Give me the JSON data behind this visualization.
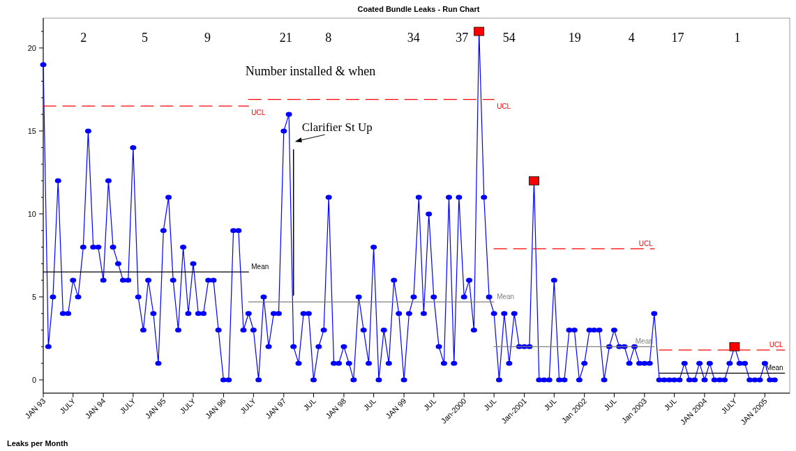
{
  "chart_data": {
    "type": "line",
    "title": "Coated Bundle Leaks - Run Chart",
    "ylabel": "Leaks per Month",
    "xlim": [
      "1993-01",
      "2005-06"
    ],
    "ylim": [
      -0.8,
      21.8
    ],
    "xticks": [
      {
        "value": "1993-01",
        "label": "JAN 93"
      },
      {
        "value": "1993-07",
        "label": "JULY"
      },
      {
        "value": "1994-01",
        "label": "JAN 94"
      },
      {
        "value": "1994-07",
        "label": "JULY"
      },
      {
        "value": "1995-01",
        "label": "JAN 95"
      },
      {
        "value": "1995-07",
        "label": "JULY"
      },
      {
        "value": "1996-01",
        "label": "JAN 96"
      },
      {
        "value": "1996-07",
        "label": "JULY"
      },
      {
        "value": "1997-01",
        "label": "JAN 97"
      },
      {
        "value": "1997-07",
        "label": "JUL"
      },
      {
        "value": "1998-01",
        "label": "JAN 98"
      },
      {
        "value": "1998-07",
        "label": "JUL"
      },
      {
        "value": "1999-01",
        "label": "JAN 99"
      },
      {
        "value": "1999-07",
        "label": "JUL"
      },
      {
        "value": "2000-01",
        "label": "Jan-2000"
      },
      {
        "value": "2000-07",
        "label": "JUL"
      },
      {
        "value": "2001-01",
        "label": "Jan-2001"
      },
      {
        "value": "2001-07",
        "label": "JUL"
      },
      {
        "value": "2002-01",
        "label": "Jan 2002"
      },
      {
        "value": "2002-07",
        "label": "JUL"
      },
      {
        "value": "2003-01",
        "label": "Jan 2003"
      },
      {
        "value": "2003-07",
        "label": "JUL"
      },
      {
        "value": "2004-01",
        "label": "JAN 2004"
      },
      {
        "value": "2004-07",
        "label": "JULY"
      },
      {
        "value": "2005-01",
        "label": "JAN 2005"
      }
    ],
    "yticks": [
      0,
      {
        "value": 1,
        "label": null
      },
      {
        "value": 2,
        "label": null
      },
      {
        "value": 3,
        "label": null
      },
      {
        "value": 4,
        "label": null
      },
      5,
      {
        "value": 6,
        "label": null
      },
      {
        "value": 7,
        "label": null
      },
      {
        "value": 8,
        "label": null
      },
      {
        "value": 9,
        "label": null
      },
      10,
      {
        "value": 11,
        "label": null
      },
      {
        "value": 12,
        "label": null
      },
      {
        "value": 13,
        "label": null
      },
      {
        "value": 14,
        "label": null
      },
      15,
      {
        "value": 16,
        "label": null
      },
      {
        "value": 17,
        "label": null
      },
      {
        "value": 18,
        "label": null
      },
      {
        "value": 19,
        "label": null
      },
      20,
      {
        "value": 21,
        "label": null
      }
    ],
    "grid": false,
    "legend": false,
    "x": [
      "1993-01",
      "1993-02",
      "1993-03",
      "1993-04",
      "1993-05",
      "1993-06",
      "1993-07",
      "1993-08",
      "1993-09",
      "1993-10",
      "1993-11",
      "1993-12",
      "1994-01",
      "1994-02",
      "1994-03",
      "1994-04",
      "1994-05",
      "1994-06",
      "1994-07",
      "1994-08",
      "1994-09",
      "1994-10",
      "1994-11",
      "1994-12",
      "1995-01",
      "1995-02",
      "1995-03",
      "1995-04",
      "1995-05",
      "1995-06",
      "1995-07",
      "1995-08",
      "1995-09",
      "1995-10",
      "1995-11",
      "1995-12",
      "1996-01",
      "1996-02",
      "1996-03",
      "1996-04",
      "1996-05",
      "1996-06",
      "1996-07",
      "1996-08",
      "1996-09",
      "1996-10",
      "1996-11",
      "1996-12",
      "1997-01",
      "1997-02",
      "1997-03",
      "1997-04",
      "1997-05",
      "1997-06",
      "1997-07",
      "1997-08",
      "1997-09",
      "1997-10",
      "1997-11",
      "1997-12",
      "1998-01",
      "1998-02",
      "1998-03",
      "1998-04",
      "1998-05",
      "1998-06",
      "1998-07",
      "1998-08",
      "1998-09",
      "1998-10",
      "1998-11",
      "1998-12",
      "1999-01",
      "1999-02",
      "1999-03",
      "1999-04",
      "1999-05",
      "1999-06",
      "1999-07",
      "1999-08",
      "1999-09",
      "1999-10",
      "1999-11",
      "1999-12",
      "2000-01",
      "2000-02",
      "2000-03",
      "2000-04",
      "2000-05",
      "2000-06",
      "2000-07",
      "2000-08",
      "2000-09",
      "2000-10",
      "2000-11",
      "2000-12",
      "2001-01",
      "2001-02",
      "2001-03",
      "2001-04",
      "2001-05",
      "2001-06",
      "2001-07",
      "2001-08",
      "2001-09",
      "2001-10",
      "2001-11",
      "2001-12",
      "2002-01",
      "2002-02",
      "2002-03",
      "2002-04",
      "2002-05",
      "2002-06",
      "2002-07",
      "2002-08",
      "2002-09",
      "2002-10",
      "2002-11",
      "2002-12",
      "2003-01",
      "2003-02",
      "2003-03",
      "2003-04",
      "2003-05",
      "2003-06",
      "2003-07",
      "2003-08",
      "2003-09",
      "2003-10",
      "2003-11",
      "2003-12",
      "2004-01",
      "2004-02",
      "2004-03",
      "2004-04",
      "2004-05",
      "2004-06",
      "2004-07",
      "2004-08",
      "2004-09",
      "2004-10",
      "2004-11",
      "2004-12",
      "2005-01",
      "2005-02",
      "2005-03"
    ],
    "series": [
      {
        "color": "#0000ff",
        "marker": "circle",
        "line_style": "solid",
        "values": [
          19,
          2,
          5,
          12,
          4,
          4,
          6,
          5,
          8,
          15,
          8,
          8,
          6,
          12,
          8,
          7,
          6,
          6,
          14,
          5,
          3,
          6,
          4,
          1,
          9,
          11,
          6,
          3,
          8,
          4,
          7,
          4,
          4,
          6,
          6,
          3,
          0,
          0,
          9,
          9,
          3,
          4,
          3,
          0,
          5,
          2,
          4,
          4,
          15,
          16,
          2,
          1,
          4,
          4,
          0,
          2,
          3,
          11,
          1,
          1,
          2,
          1,
          0,
          5,
          3,
          1,
          8,
          0,
          3,
          1,
          6,
          4,
          0,
          4,
          5,
          11,
          4,
          10,
          5,
          2,
          1,
          11,
          1,
          11,
          5,
          6,
          3,
          21,
          11,
          5,
          4,
          0,
          4,
          1,
          4,
          2,
          2,
          2,
          12,
          0,
          0,
          0,
          6,
          0,
          0,
          3,
          3,
          0,
          1,
          3,
          3,
          3,
          0,
          2,
          3,
          2,
          2,
          1,
          2,
          1,
          1,
          1,
          4,
          0,
          0,
          0,
          0,
          0,
          1,
          0,
          0,
          1,
          0,
          1,
          0,
          0,
          0,
          1,
          2,
          1,
          1,
          0,
          0,
          0,
          1,
          0,
          0
        ]
      },
      {
        "type": "scatter",
        "color": "#ff0000",
        "marker": "square",
        "x": [
          "2000-04",
          "2001-03",
          "2004-07"
        ],
        "values": [
          21,
          12,
          2
        ]
      },
      {
        "type": "line",
        "name": "UCL",
        "color": "#ff0000",
        "marker": "none",
        "line_style": "dashed",
        "x": [
          "1993-01",
          "1996-06"
        ],
        "values": [
          16.5,
          16.5
        ]
      },
      {
        "type": "line",
        "name": "UCL",
        "color": "#ff0000",
        "marker": "none",
        "line_style": "dashed",
        "x": [
          "1996-06",
          "2000-07"
        ],
        "values": [
          16.9,
          16.9
        ]
      },
      {
        "type": "line",
        "name": "UCL",
        "color": "#ff0000",
        "marker": "none",
        "line_style": "dashed",
        "x": [
          "2000-07",
          "2003-03"
        ],
        "values": [
          7.9,
          7.9
        ]
      },
      {
        "type": "line",
        "name": "UCL",
        "color": "#ff0000",
        "marker": "none",
        "line_style": "dashed",
        "x": [
          "2003-04",
          "2005-05"
        ],
        "values": [
          1.8,
          1.8
        ]
      },
      {
        "type": "line",
        "name": "Mean",
        "color": "#000000",
        "marker": "none",
        "line_style": "solid",
        "x": [
          "1993-01",
          "1996-06"
        ],
        "values": [
          6.5,
          6.5
        ]
      },
      {
        "type": "line",
        "name": "Mean",
        "color": "#808080",
        "marker": "none",
        "line_style": "solid",
        "x": [
          "1996-06",
          "2000-07"
        ],
        "values": [
          4.7,
          4.7
        ]
      },
      {
        "type": "line",
        "name": "Mean",
        "color": "#808080",
        "marker": "none",
        "line_style": "solid",
        "x": [
          "2000-07",
          "2003-03"
        ],
        "values": [
          2.0,
          2.0
        ]
      },
      {
        "type": "line",
        "name": "Mean",
        "color": "#000000",
        "marker": "none",
        "line_style": "solid",
        "x": [
          "2003-04",
          "2005-05"
        ],
        "values": [
          0.4,
          0.4
        ]
      }
    ],
    "ref_lines": [
      {
        "axis": "x",
        "value": "1997-03",
        "label": "Clarifier St Up",
        "color": "#000000"
      }
    ],
    "annotations": [
      "Number installed & when",
      "2",
      "5",
      "9",
      "21",
      "8",
      "34",
      "37",
      "54",
      "19",
      "4",
      "17",
      "1"
    ]
  }
}
